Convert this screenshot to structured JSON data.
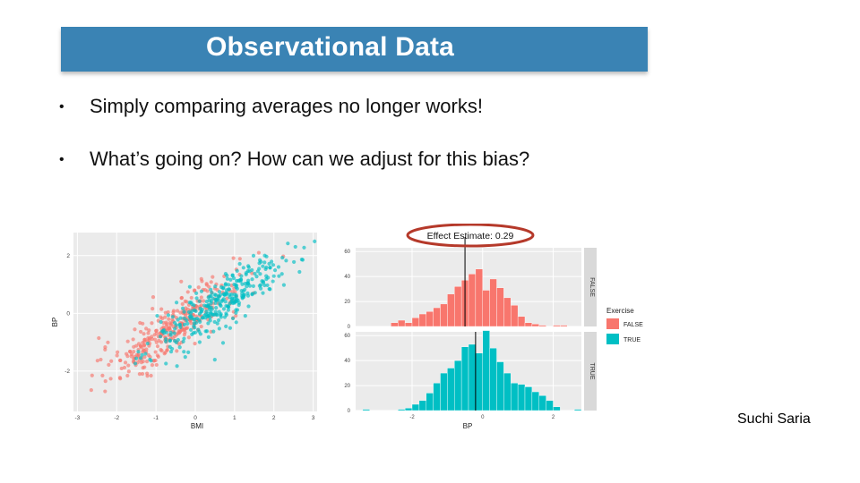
{
  "slide": {
    "title": "Observational Data",
    "bullets": [
      "Simply comparing averages no longer works!",
      "What’s going on? How can we adjust for this bias?"
    ],
    "credit": "Suchi Saria"
  },
  "colors": {
    "false": "#f8766d",
    "true": "#00bfc4",
    "title_bar": "#3a83b4"
  },
  "chart_data": [
    {
      "type": "scatter",
      "xlabel": "BMI",
      "ylabel": "BP",
      "xticks": [
        -3,
        -2,
        -1,
        0,
        1,
        2,
        3
      ],
      "yticks": [
        -2,
        0,
        2
      ],
      "xlim": [
        -3.1,
        3.1
      ],
      "ylim": [
        -3.4,
        2.8
      ],
      "grid": true,
      "series": [
        {
          "name": "FALSE",
          "color": "#f8766d",
          "center": [
            -0.6,
            -0.5
          ],
          "spread": [
            0.9,
            0.75
          ],
          "count": 330
        },
        {
          "name": "TRUE",
          "color": "#00bfc4",
          "center": [
            0.7,
            0.4
          ],
          "spread": [
            0.9,
            0.75
          ],
          "count": 330
        }
      ]
    },
    {
      "type": "bar",
      "title": "Effect Estimate: 0.29",
      "xlabel": "BP",
      "xticks": [
        -2,
        0,
        2
      ],
      "yticks": [
        0,
        20,
        40,
        60
      ],
      "ylim": [
        0,
        63
      ],
      "legend": {
        "title": "Exercise",
        "entries": [
          "FALSE",
          "TRUE"
        ],
        "position": "right"
      },
      "panels": [
        {
          "label": "FALSE",
          "color": "#f8766d",
          "mean_line": -0.5,
          "bins_x": [
            -2.8,
            -2.6,
            -2.4,
            -2.2,
            -2.0,
            -1.8,
            -1.6,
            -1.4,
            -1.2,
            -1.0,
            -0.8,
            -0.6,
            -0.4,
            -0.2,
            0.0,
            0.2,
            0.4,
            0.6,
            0.8,
            1.0,
            1.2,
            1.4,
            1.6,
            1.8,
            2.0,
            2.2
          ],
          "values": [
            0,
            3,
            5,
            3,
            7,
            10,
            12,
            15,
            18,
            26,
            32,
            37,
            42,
            46,
            29,
            38,
            31,
            23,
            17,
            8,
            3,
            2,
            1,
            0,
            1,
            1
          ]
        },
        {
          "label": "TRUE",
          "color": "#00bfc4",
          "mean_line": -0.2,
          "bins_x": [
            -3.4,
            -2.4,
            -2.2,
            -2.0,
            -1.8,
            -1.6,
            -1.4,
            -1.2,
            -1.0,
            -0.8,
            -0.6,
            -0.4,
            -0.2,
            0.0,
            0.2,
            0.4,
            0.6,
            0.8,
            1.0,
            1.2,
            1.4,
            1.6,
            1.8,
            2.0,
            2.6
          ],
          "values": [
            1,
            1,
            2,
            5,
            8,
            14,
            22,
            30,
            34,
            40,
            51,
            53,
            46,
            64,
            50,
            39,
            30,
            22,
            21,
            19,
            15,
            12,
            8,
            3,
            1
          ]
        }
      ]
    }
  ]
}
